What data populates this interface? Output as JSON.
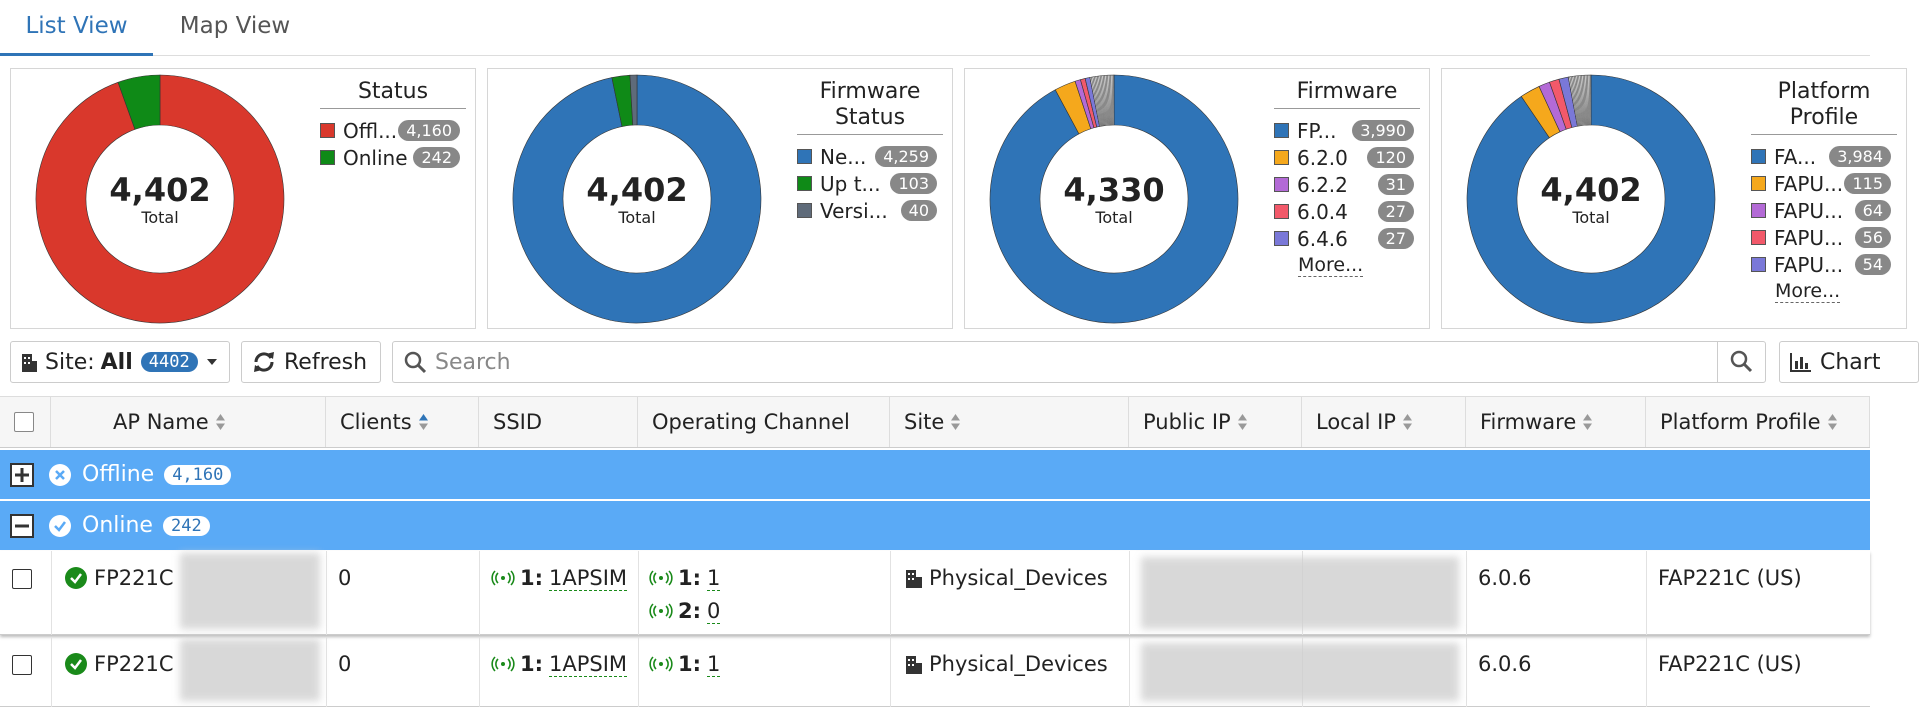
{
  "tabs": [
    "List View",
    "Map View"
  ],
  "chart_data": [
    {
      "type": "pie",
      "title": "Status",
      "categories": [
        "Offl...",
        "Online"
      ],
      "values": [
        4160,
        242
      ],
      "value_labels": [
        "4,160",
        "242"
      ],
      "colors": [
        "#d9382c",
        "#0f8a17"
      ],
      "total": {
        "value": 4402,
        "label": "4,402"
      },
      "total_caption": "Total"
    },
    {
      "type": "pie",
      "title": "Firmware Status",
      "categories": [
        "Ne...",
        "Up t...",
        "Versi..."
      ],
      "values": [
        4259,
        103,
        40
      ],
      "value_labels": [
        "4,259",
        "103",
        "40"
      ],
      "colors": [
        "#2f74b7",
        "#0f8a17",
        "#5f6b7a"
      ],
      "total": {
        "value": 4402,
        "label": "4,402"
      },
      "total_caption": "Total"
    },
    {
      "type": "pie",
      "title": "Firmware",
      "categories": [
        "FP...",
        "6.2.0",
        "6.2.2",
        "6.0.4",
        "6.4.6"
      ],
      "values": [
        3990,
        120,
        31,
        27,
        27
      ],
      "value_labels": [
        "3,990",
        "120",
        "31",
        "27",
        "27"
      ],
      "colors": [
        "#2f74b7",
        "#f5a81c",
        "#b36ad6",
        "#f2596a",
        "#7a78d8"
      ],
      "total": {
        "value": 4330,
        "label": "4,330"
      },
      "total_caption": "Total",
      "more": "More..."
    },
    {
      "type": "pie",
      "title": "Platform Profile",
      "categories": [
        "FA...",
        "FAPU...",
        "FAPU...",
        "FAPU...",
        "FAPU..."
      ],
      "values": [
        3984,
        115,
        64,
        56,
        54
      ],
      "value_labels": [
        "3,984",
        "115",
        "64",
        "56",
        "54"
      ],
      "colors": [
        "#2f74b7",
        "#f5a81c",
        "#b36ad6",
        "#f2596a",
        "#7a78d8"
      ],
      "total": {
        "value": 4402,
        "label": "4,402"
      },
      "total_caption": "Total",
      "more": "More..."
    }
  ],
  "toolbar": {
    "site_label": "Site:",
    "site_value": "All",
    "site_count": "4402",
    "refresh": "Refresh",
    "search_placeholder": "Search",
    "chart_button": "Chart"
  },
  "table": {
    "headers": [
      "AP Name",
      "Clients",
      "SSID",
      "Operating Channel",
      "Site",
      "Public IP",
      "Local IP",
      "Firmware",
      "Platform Profile"
    ],
    "groups": [
      {
        "name": "Offline",
        "count": "4,160"
      },
      {
        "name": "Online",
        "count": "242"
      }
    ],
    "rows": [
      {
        "ap_name": "FP221C",
        "clients": 0,
        "ssid": {
          "radio": "1:",
          "name": "1APSIM"
        },
        "channels": [
          {
            "radio": "1:",
            "value": "1"
          },
          {
            "radio": "2:",
            "value": "0"
          }
        ],
        "site": "Physical_Devices",
        "firmware": "6.0.6",
        "platform": "FAP221C (US)"
      },
      {
        "ap_name": "FP221C",
        "clients": 0,
        "ssid": {
          "radio": "1:",
          "name": "1APSIM"
        },
        "channels": [
          {
            "radio": "1:",
            "value": "1"
          }
        ],
        "site": "Physical_Devices",
        "firmware": "6.0.6",
        "platform": "FAP221C (US)"
      }
    ]
  }
}
